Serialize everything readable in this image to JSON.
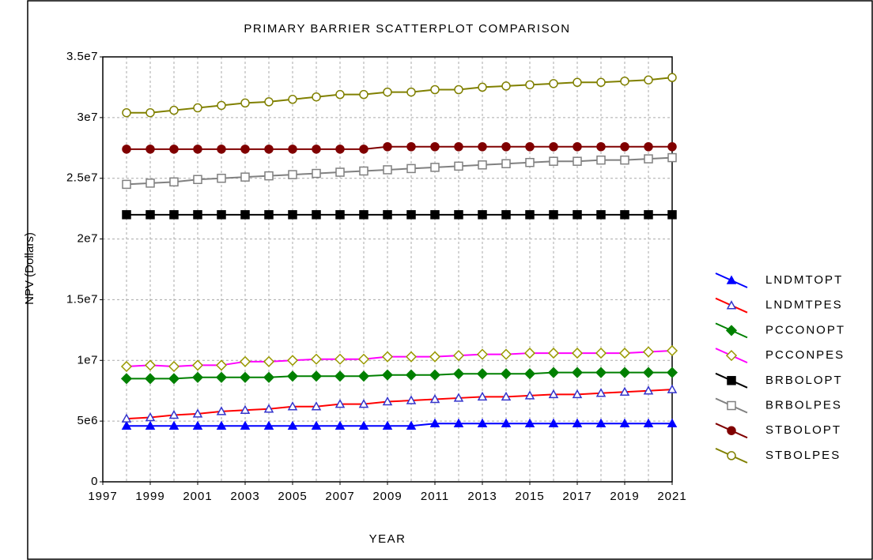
{
  "chart_data": {
    "type": "scatter",
    "title": "PRIMARY BARRIER SCATTERPLOT COMPARISON",
    "x_label": "YEAR",
    "y_label": "NPV (Dollars)",
    "x": [
      1998,
      1999,
      2000,
      2001,
      2002,
      2003,
      2004,
      2005,
      2006,
      2007,
      2008,
      2009,
      2010,
      2011,
      2012,
      2013,
      2014,
      2015,
      2016,
      2017,
      2018,
      2019,
      2020,
      2021
    ],
    "xlim": [
      1997,
      2021
    ],
    "xticks": [
      1997,
      1999,
      2001,
      2003,
      2005,
      2007,
      2009,
      2011,
      2013,
      2015,
      2017,
      2019,
      2021
    ],
    "ylim": [
      0,
      35000000
    ],
    "yticks": [
      0,
      {
        "value": 5000000,
        "label": "5e6"
      },
      {
        "value": 10000000,
        "label": "1e7"
      },
      {
        "value": 15000000,
        "label": "1.5e7"
      },
      {
        "value": 20000000,
        "label": "2e7"
      },
      {
        "value": 25000000,
        "label": "2.5e7"
      },
      {
        "value": 30000000,
        "label": "3e7"
      },
      {
        "value": 35000000,
        "label": "3.5e7"
      }
    ],
    "grid": true,
    "legend": "right",
    "series": [
      {
        "name": "LNDMTOPT",
        "color": "#0000ff",
        "marker": "triangle",
        "marker_color": "#0000ff",
        "filled": true,
        "values": [
          4600000,
          4600000,
          4600000,
          4600000,
          4600000,
          4600000,
          4600000,
          4600000,
          4600000,
          4600000,
          4600000,
          4600000,
          4600000,
          4800000,
          4800000,
          4800000,
          4800000,
          4800000,
          4800000,
          4800000,
          4800000,
          4800000,
          4800000,
          4800000
        ]
      },
      {
        "name": "LNDMTPES",
        "color": "#ff0000",
        "marker": "triangle",
        "marker_color": "#3333cc",
        "filled": false,
        "values": [
          5200000,
          5300000,
          5500000,
          5600000,
          5800000,
          5900000,
          6000000,
          6200000,
          6200000,
          6400000,
          6400000,
          6600000,
          6700000,
          6800000,
          6900000,
          7000000,
          7000000,
          7100000,
          7200000,
          7200000,
          7300000,
          7400000,
          7500000,
          7600000
        ]
      },
      {
        "name": "PCCONOPT",
        "color": "#008000",
        "marker": "diamond",
        "marker_color": "#008000",
        "filled": true,
        "values": [
          8500000,
          8500000,
          8500000,
          8600000,
          8600000,
          8600000,
          8600000,
          8700000,
          8700000,
          8700000,
          8700000,
          8800000,
          8800000,
          8800000,
          8900000,
          8900000,
          8900000,
          8900000,
          9000000,
          9000000,
          9000000,
          9000000,
          9000000,
          9000000
        ]
      },
      {
        "name": "PCCONPES",
        "color": "#ff00ff",
        "marker": "diamond",
        "marker_color": "#999900",
        "filled": false,
        "values": [
          9500000,
          9600000,
          9500000,
          9600000,
          9600000,
          9900000,
          9900000,
          10000000,
          10100000,
          10100000,
          10100000,
          10300000,
          10300000,
          10300000,
          10400000,
          10500000,
          10500000,
          10600000,
          10600000,
          10600000,
          10600000,
          10600000,
          10700000,
          10800000
        ]
      },
      {
        "name": "BRBOLOPT",
        "color": "#000000",
        "marker": "square",
        "marker_color": "#000000",
        "filled": true,
        "values": [
          22000000,
          22000000,
          22000000,
          22000000,
          22000000,
          22000000,
          22000000,
          22000000,
          22000000,
          22000000,
          22000000,
          22000000,
          22000000,
          22000000,
          22000000,
          22000000,
          22000000,
          22000000,
          22000000,
          22000000,
          22000000,
          22000000,
          22000000,
          22000000
        ]
      },
      {
        "name": "BRBOLPES",
        "color": "#808080",
        "marker": "square",
        "marker_color": "#808080",
        "filled": false,
        "values": [
          24500000,
          24600000,
          24700000,
          24900000,
          25000000,
          25100000,
          25200000,
          25300000,
          25400000,
          25500000,
          25600000,
          25700000,
          25800000,
          25900000,
          26000000,
          26100000,
          26200000,
          26300000,
          26400000,
          26400000,
          26500000,
          26500000,
          26600000,
          26700000
        ]
      },
      {
        "name": "STBOLOPT",
        "color": "#800000",
        "marker": "circle",
        "marker_color": "#800000",
        "filled": true,
        "values": [
          27400000,
          27400000,
          27400000,
          27400000,
          27400000,
          27400000,
          27400000,
          27400000,
          27400000,
          27400000,
          27400000,
          27600000,
          27600000,
          27600000,
          27600000,
          27600000,
          27600000,
          27600000,
          27600000,
          27600000,
          27600000,
          27600000,
          27600000,
          27600000
        ]
      },
      {
        "name": "STBOLPES",
        "color": "#808000",
        "marker": "circle",
        "marker_color": "#808000",
        "filled": false,
        "values": [
          30400000,
          30400000,
          30600000,
          30800000,
          31000000,
          31200000,
          31300000,
          31500000,
          31700000,
          31900000,
          31900000,
          32100000,
          32100000,
          32300000,
          32300000,
          32500000,
          32600000,
          32700000,
          32800000,
          32900000,
          32900000,
          33000000,
          33100000,
          33300000
        ]
      }
    ]
  }
}
